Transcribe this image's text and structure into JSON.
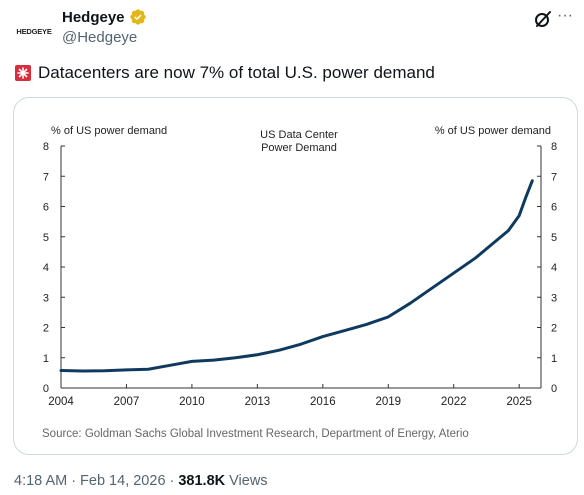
{
  "author": {
    "avatar_text": "HEDGEYE",
    "display_name": "Hedgeye",
    "handle": "@Hedgeye"
  },
  "actions": {
    "more_label": "···"
  },
  "tweet": {
    "text": "Datacenters are now 7% of total U.S. power demand"
  },
  "meta": {
    "time": "4:18 AM",
    "date": "Feb 14, 2026",
    "views": "381.8K",
    "views_label": "Views",
    "sep1": "·",
    "sep2": "·"
  },
  "colors": {
    "line": "#0f3a5f",
    "text_secondary": "#536471",
    "verified": "#e2b719"
  },
  "chart_data": {
    "type": "line",
    "title": "US Data Center\nPower Demand",
    "title_lines": [
      "US Data Center",
      "Power Demand"
    ],
    "ylabel_left": "% of US power demand",
    "ylabel_right": "% of US power demand",
    "ylim": [
      0,
      8
    ],
    "yticks": [
      "0",
      "1",
      "2",
      "3",
      "4",
      "5",
      "6",
      "7",
      "8"
    ],
    "xlim": [
      2004,
      2026
    ],
    "xticks": [
      "2004",
      "2007",
      "2010",
      "2013",
      "2016",
      "2019",
      "2022",
      "2025"
    ],
    "source": "Source: Goldman Sachs Global Investment Research, Department of Energy, Aterio",
    "grid": false,
    "series": [
      {
        "x": [
          2004.0,
          2005.0,
          2006.0,
          2007.0,
          2008.0,
          2009.0,
          2010.0,
          2011.0,
          2012.0,
          2013.0,
          2014.0,
          2015.0,
          2016.0,
          2017.0,
          2018.0,
          2019.0,
          2020.0,
          2021.0,
          2022.0,
          2023.0,
          2024.0,
          2024.5,
          2025.0,
          2025.3,
          2025.6
        ],
        "y": [
          0.58,
          0.56,
          0.57,
          0.6,
          0.62,
          0.75,
          0.88,
          0.92,
          1.0,
          1.1,
          1.25,
          1.45,
          1.7,
          1.9,
          2.1,
          2.35,
          2.8,
          3.3,
          3.8,
          4.3,
          4.9,
          5.2,
          5.7,
          6.3,
          6.85
        ]
      }
    ]
  }
}
